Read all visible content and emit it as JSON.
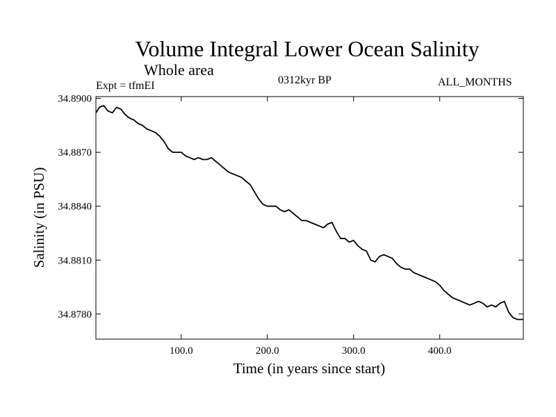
{
  "header": {
    "title": "Volume Integral Lower Ocean Salinity",
    "subtitle": "Whole area",
    "experiment": "Expt = tfmEI",
    "period": "0312kyr BP",
    "months": "ALL_MONTHS"
  },
  "chart_data": {
    "type": "line",
    "title": "Volume Integral Lower Ocean Salinity",
    "xlabel": "Time (in years since start)",
    "ylabel": "Salinity (in PSU)",
    "xlim": [
      1,
      497
    ],
    "ylim": [
      34.8766,
      34.8901
    ],
    "xticks": [
      100,
      200,
      300,
      400
    ],
    "xtick_labels": [
      "100.0",
      "200.0",
      "300.0",
      "400.0"
    ],
    "yticks": [
      34.878,
      34.881,
      34.884,
      34.887,
      34.89
    ],
    "ytick_labels": [
      "34.8780",
      "34.8810",
      "34.8840",
      "34.8870",
      "34.8900"
    ],
    "grid": false,
    "series": [
      {
        "color": "#000000",
        "x": [
          1,
          5,
          10,
          15,
          20,
          25,
          30,
          35,
          40,
          45,
          50,
          55,
          60,
          65,
          70,
          75,
          80,
          85,
          90,
          95,
          100,
          105,
          110,
          115,
          120,
          125,
          130,
          135,
          140,
          145,
          150,
          155,
          160,
          165,
          170,
          175,
          180,
          185,
          190,
          195,
          200,
          205,
          210,
          215,
          220,
          225,
          230,
          235,
          240,
          245,
          250,
          255,
          260,
          265,
          270,
          275,
          280,
          285,
          290,
          295,
          300,
          305,
          310,
          315,
          320,
          325,
          330,
          335,
          340,
          345,
          350,
          355,
          360,
          365,
          370,
          375,
          380,
          385,
          390,
          395,
          400,
          405,
          410,
          415,
          420,
          425,
          430,
          435,
          440,
          445,
          450,
          455,
          460,
          465,
          470,
          475,
          480,
          485,
          490,
          497
        ],
        "y": [
          34.8892,
          34.8895,
          34.8896,
          34.8893,
          34.8892,
          34.8895,
          34.8894,
          34.8891,
          34.8889,
          34.8888,
          34.8886,
          34.8885,
          34.8883,
          34.8882,
          34.8881,
          34.8879,
          34.8876,
          34.8872,
          34.887,
          34.887,
          34.887,
          34.8868,
          34.8867,
          34.8866,
          34.8867,
          34.8866,
          34.8866,
          34.8867,
          34.8865,
          34.8863,
          34.8861,
          34.8859,
          34.8858,
          34.8857,
          34.8856,
          34.8854,
          34.8852,
          34.8848,
          34.8844,
          34.8841,
          34.884,
          34.884,
          34.884,
          34.8838,
          34.8837,
          34.8838,
          34.8836,
          34.8834,
          34.8832,
          34.8832,
          34.8831,
          34.883,
          34.8829,
          34.8828,
          34.883,
          34.8831,
          34.8826,
          34.8822,
          34.8822,
          34.882,
          34.8821,
          34.8818,
          34.8816,
          34.8815,
          34.881,
          34.8809,
          34.8812,
          34.8813,
          34.8812,
          34.8811,
          34.8808,
          34.8806,
          34.8805,
          34.8805,
          34.8803,
          34.8802,
          34.8801,
          34.88,
          34.8799,
          34.8798,
          34.8796,
          34.8793,
          34.8791,
          34.8789,
          34.8788,
          34.8787,
          34.8786,
          34.8785,
          34.8786,
          34.8787,
          34.8786,
          34.8784,
          34.8785,
          34.8784,
          34.8786,
          34.8787,
          34.8781,
          34.8778,
          34.8777,
          34.8777
        ]
      }
    ]
  }
}
